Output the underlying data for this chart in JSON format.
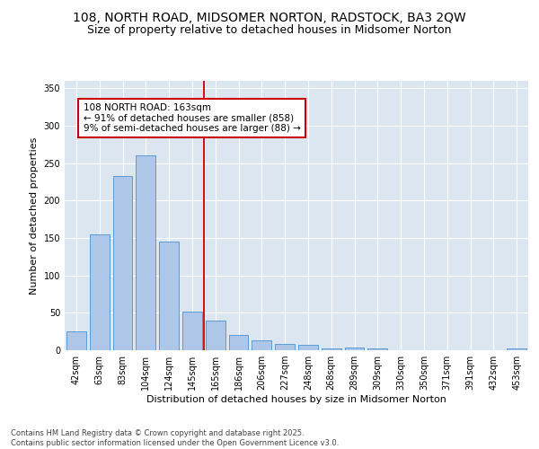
{
  "title1": "108, NORTH ROAD, MIDSOMER NORTON, RADSTOCK, BA3 2QW",
  "title2": "Size of property relative to detached houses in Midsomer Norton",
  "xlabel": "Distribution of detached houses by size in Midsomer Norton",
  "ylabel": "Number of detached properties",
  "categories": [
    "42sqm",
    "63sqm",
    "83sqm",
    "104sqm",
    "124sqm",
    "145sqm",
    "165sqm",
    "186sqm",
    "206sqm",
    "227sqm",
    "248sqm",
    "268sqm",
    "289sqm",
    "309sqm",
    "330sqm",
    "350sqm",
    "371sqm",
    "391sqm",
    "432sqm",
    "453sqm"
  ],
  "values": [
    25,
    155,
    233,
    260,
    145,
    52,
    40,
    20,
    13,
    8,
    7,
    3,
    4,
    3,
    0,
    0,
    0,
    0,
    0,
    3
  ],
  "bar_color": "#aec6e8",
  "bar_edgecolor": "#5b9bd5",
  "vline_x": 5.5,
  "vline_color": "#cc0000",
  "annotation_text": "108 NORTH ROAD: 163sqm\n← 91% of detached houses are smaller (858)\n9% of semi-detached houses are larger (88) →",
  "annotation_box_edgecolor": "#cc0000",
  "annotation_box_facecolor": "#ffffff",
  "ylim": [
    0,
    360
  ],
  "yticks": [
    0,
    50,
    100,
    150,
    200,
    250,
    300,
    350
  ],
  "background_color": "#dce6f1",
  "footer": "Contains HM Land Registry data © Crown copyright and database right 2025.\nContains public sector information licensed under the Open Government Licence v3.0.",
  "title_fontsize": 10,
  "subtitle_fontsize": 9,
  "tick_fontsize": 7,
  "label_fontsize": 8,
  "annotation_fontsize": 7.5,
  "footer_fontsize": 6
}
